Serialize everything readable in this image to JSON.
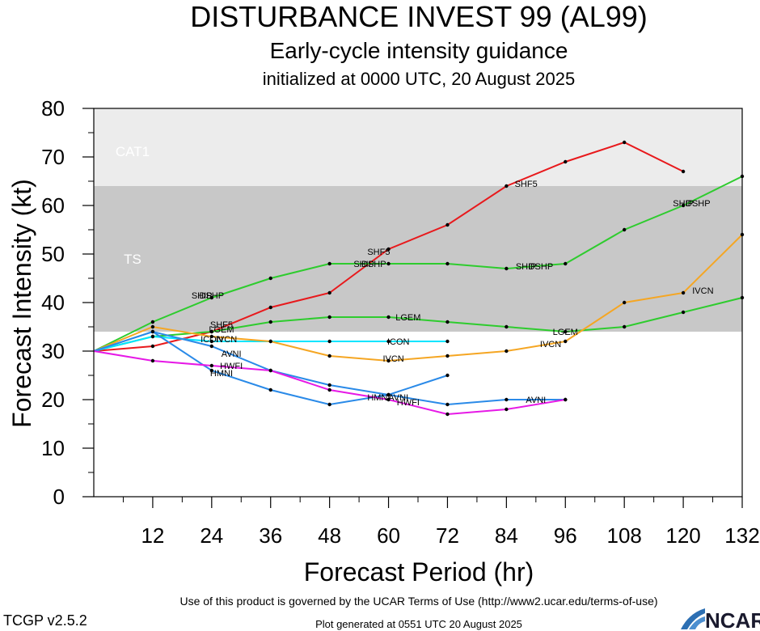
{
  "header": {
    "title": "DISTURBANCE INVEST 99 (AL99)",
    "subtitle": "Early-cycle intensity guidance",
    "init": "initialized at 0000 UTC, 20 August 2025"
  },
  "footer": {
    "terms": "Use of this product is governed by the UCAR Terms of Use (http://www2.ucar.edu/terms-of-use)",
    "version": "TCGP v2.5.2",
    "generated": "Plot generated at 0551 UTC   20 August 2025",
    "logo_text": "NCAR"
  },
  "chart_data": {
    "type": "line",
    "xlabel": "Forecast Period (hr)",
    "ylabel": "Forecast Intensity (kt)",
    "xlim": [
      0,
      132
    ],
    "ylim": [
      0,
      80
    ],
    "x_ticks": [
      12,
      24,
      36,
      48,
      60,
      72,
      84,
      96,
      108,
      120,
      132
    ],
    "y_ticks": [
      0,
      10,
      20,
      30,
      40,
      50,
      60,
      70,
      80
    ],
    "grid": false,
    "bands": [
      {
        "label": "TS",
        "from": 34,
        "to": 64,
        "color": "#c8c8c8"
      },
      {
        "label": "CAT1",
        "from": 64,
        "to": 83,
        "color": "#ececec"
      }
    ],
    "series": [
      {
        "name": "SHF5",
        "color": "#e8191c",
        "points": [
          [
            0,
            30
          ],
          [
            12,
            31
          ],
          [
            24,
            34
          ],
          [
            36,
            39
          ],
          [
            48,
            42
          ],
          [
            60,
            51
          ],
          [
            72,
            56
          ],
          [
            84,
            64
          ],
          [
            96,
            69
          ],
          [
            108,
            73
          ],
          [
            120,
            67
          ]
        ],
        "labels": [
          [
            26,
            35.5
          ],
          [
            58,
            50.5
          ],
          [
            88,
            64.5
          ]
        ]
      },
      {
        "name": "DSHP",
        "color": "#2ecc2e",
        "points": [
          [
            0,
            30
          ],
          [
            12,
            36
          ],
          [
            24,
            41
          ],
          [
            36,
            45
          ],
          [
            48,
            48
          ],
          [
            60,
            48
          ],
          [
            72,
            48
          ],
          [
            84,
            47
          ],
          [
            96,
            48
          ],
          [
            108,
            55
          ],
          [
            120,
            60
          ],
          [
            132,
            66
          ]
        ],
        "labels": [
          [
            24,
            41.5
          ],
          [
            57,
            48
          ],
          [
            91,
            47.5
          ],
          [
            123,
            60.5
          ]
        ]
      },
      {
        "name": "SHIP",
        "color": "#2ecc2e",
        "points": [],
        "labels": [
          [
            22,
            41.5
          ],
          [
            55,
            48
          ],
          [
            88,
            47.5
          ],
          [
            120,
            60.5
          ]
        ]
      },
      {
        "name": "LGEM",
        "color": "#2ecc2e",
        "points": [
          [
            0,
            30
          ],
          [
            12,
            33
          ],
          [
            24,
            34
          ],
          [
            36,
            36
          ],
          [
            48,
            37
          ],
          [
            60,
            37
          ],
          [
            72,
            36
          ],
          [
            84,
            35
          ],
          [
            96,
            34
          ],
          [
            108,
            35
          ],
          [
            120,
            38
          ],
          [
            132,
            41
          ]
        ],
        "labels": [
          [
            26,
            34.5
          ],
          [
            64,
            37
          ],
          [
            96,
            34
          ]
        ]
      },
      {
        "name": "ICON",
        "color": "#00e5ff",
        "points": [
          [
            0,
            30
          ],
          [
            12,
            33
          ],
          [
            24,
            32
          ],
          [
            36,
            32
          ],
          [
            48,
            32
          ],
          [
            60,
            32
          ],
          [
            72,
            32
          ]
        ],
        "labels": [
          [
            24,
            32.5
          ],
          [
            62,
            32
          ]
        ]
      },
      {
        "name": "IVCN",
        "color": "#f5a623",
        "points": [
          [
            0,
            30
          ],
          [
            12,
            35
          ],
          [
            24,
            33
          ],
          [
            36,
            32
          ],
          [
            48,
            29
          ],
          [
            60,
            28
          ],
          [
            72,
            29
          ],
          [
            84,
            30
          ],
          [
            96,
            32
          ],
          [
            108,
            40
          ],
          [
            120,
            42
          ],
          [
            132,
            54
          ]
        ],
        "labels": [
          [
            27,
            32.5
          ],
          [
            61,
            28.5
          ],
          [
            93,
            31.5
          ],
          [
            124,
            42.5
          ]
        ]
      },
      {
        "name": "AVNI",
        "color": "#2a8ae8",
        "points": [
          [
            0,
            30
          ],
          [
            12,
            34
          ],
          [
            24,
            31
          ],
          [
            36,
            26
          ],
          [
            48,
            23
          ],
          [
            60,
            21
          ],
          [
            72,
            19
          ],
          [
            84,
            20
          ],
          [
            96,
            20
          ]
        ],
        "labels": [
          [
            28,
            29.5
          ],
          [
            62,
            20.5
          ],
          [
            90,
            20
          ]
        ]
      },
      {
        "name": "HMNI",
        "color": "#2a8ae8",
        "points": [
          [
            0,
            30
          ],
          [
            12,
            34
          ],
          [
            24,
            26
          ],
          [
            36,
            22
          ],
          [
            48,
            19
          ],
          [
            60,
            21
          ],
          [
            72,
            25
          ]
        ],
        "labels": [
          [
            26,
            25.5
          ],
          [
            58,
            20.5
          ]
        ]
      },
      {
        "name": "HWFI",
        "color": "#e619e6",
        "points": [
          [
            0,
            30
          ],
          [
            12,
            28
          ],
          [
            24,
            27
          ],
          [
            36,
            26
          ],
          [
            48,
            22
          ],
          [
            60,
            20
          ],
          [
            72,
            17
          ],
          [
            84,
            18
          ],
          [
            96,
            20
          ]
        ],
        "labels": [
          [
            28,
            27
          ],
          [
            64,
            19.5
          ]
        ]
      }
    ]
  }
}
